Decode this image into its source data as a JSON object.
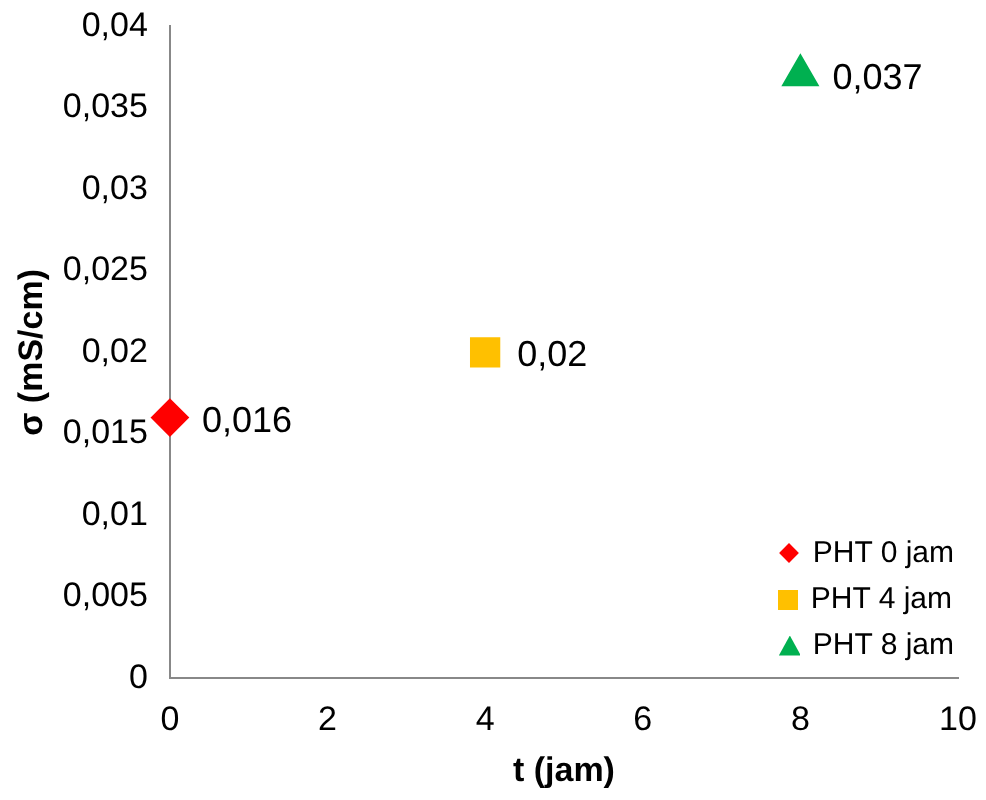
{
  "chart_data": {
    "type": "scatter",
    "xlabel": "t (jam)",
    "ylabel": "σ (mS/cm)",
    "xlim": [
      0,
      10
    ],
    "xticks": [
      0,
      2,
      4,
      6,
      8,
      10
    ],
    "ylim": [
      0,
      0.04
    ],
    "yticks": [
      0,
      {
        "value": 0.005,
        "label": "0,005"
      },
      {
        "value": 0.01,
        "label": "0,01"
      },
      {
        "value": 0.015,
        "label": "0,015"
      },
      {
        "value": 0.02,
        "label": "0,02"
      },
      {
        "value": 0.025,
        "label": "0,025"
      },
      {
        "value": 0.03,
        "label": "0,03"
      },
      {
        "value": 0.035,
        "label": "0,035"
      },
      {
        "value": 0.04,
        "label": "0,04"
      }
    ],
    "grid": false,
    "legend": "bottom right",
    "series": [
      {
        "name": "PHT 0 jam",
        "color": "#ff0000",
        "marker": "diamond",
        "x": [
          0
        ],
        "values": [
          0.016
        ],
        "value_labels": [
          "0,016"
        ]
      },
      {
        "name": "PHT 4 jam",
        "color": "#ffc000",
        "marker": "square",
        "x": [
          4
        ],
        "values": [
          0.02
        ],
        "value_labels": [
          "0,02"
        ]
      },
      {
        "name": "PHT 8 jam",
        "color": "#00b050",
        "marker": "triangle",
        "x": [
          8
        ],
        "values": [
          0.037
        ],
        "value_labels": [
          "0,037"
        ]
      }
    ]
  }
}
